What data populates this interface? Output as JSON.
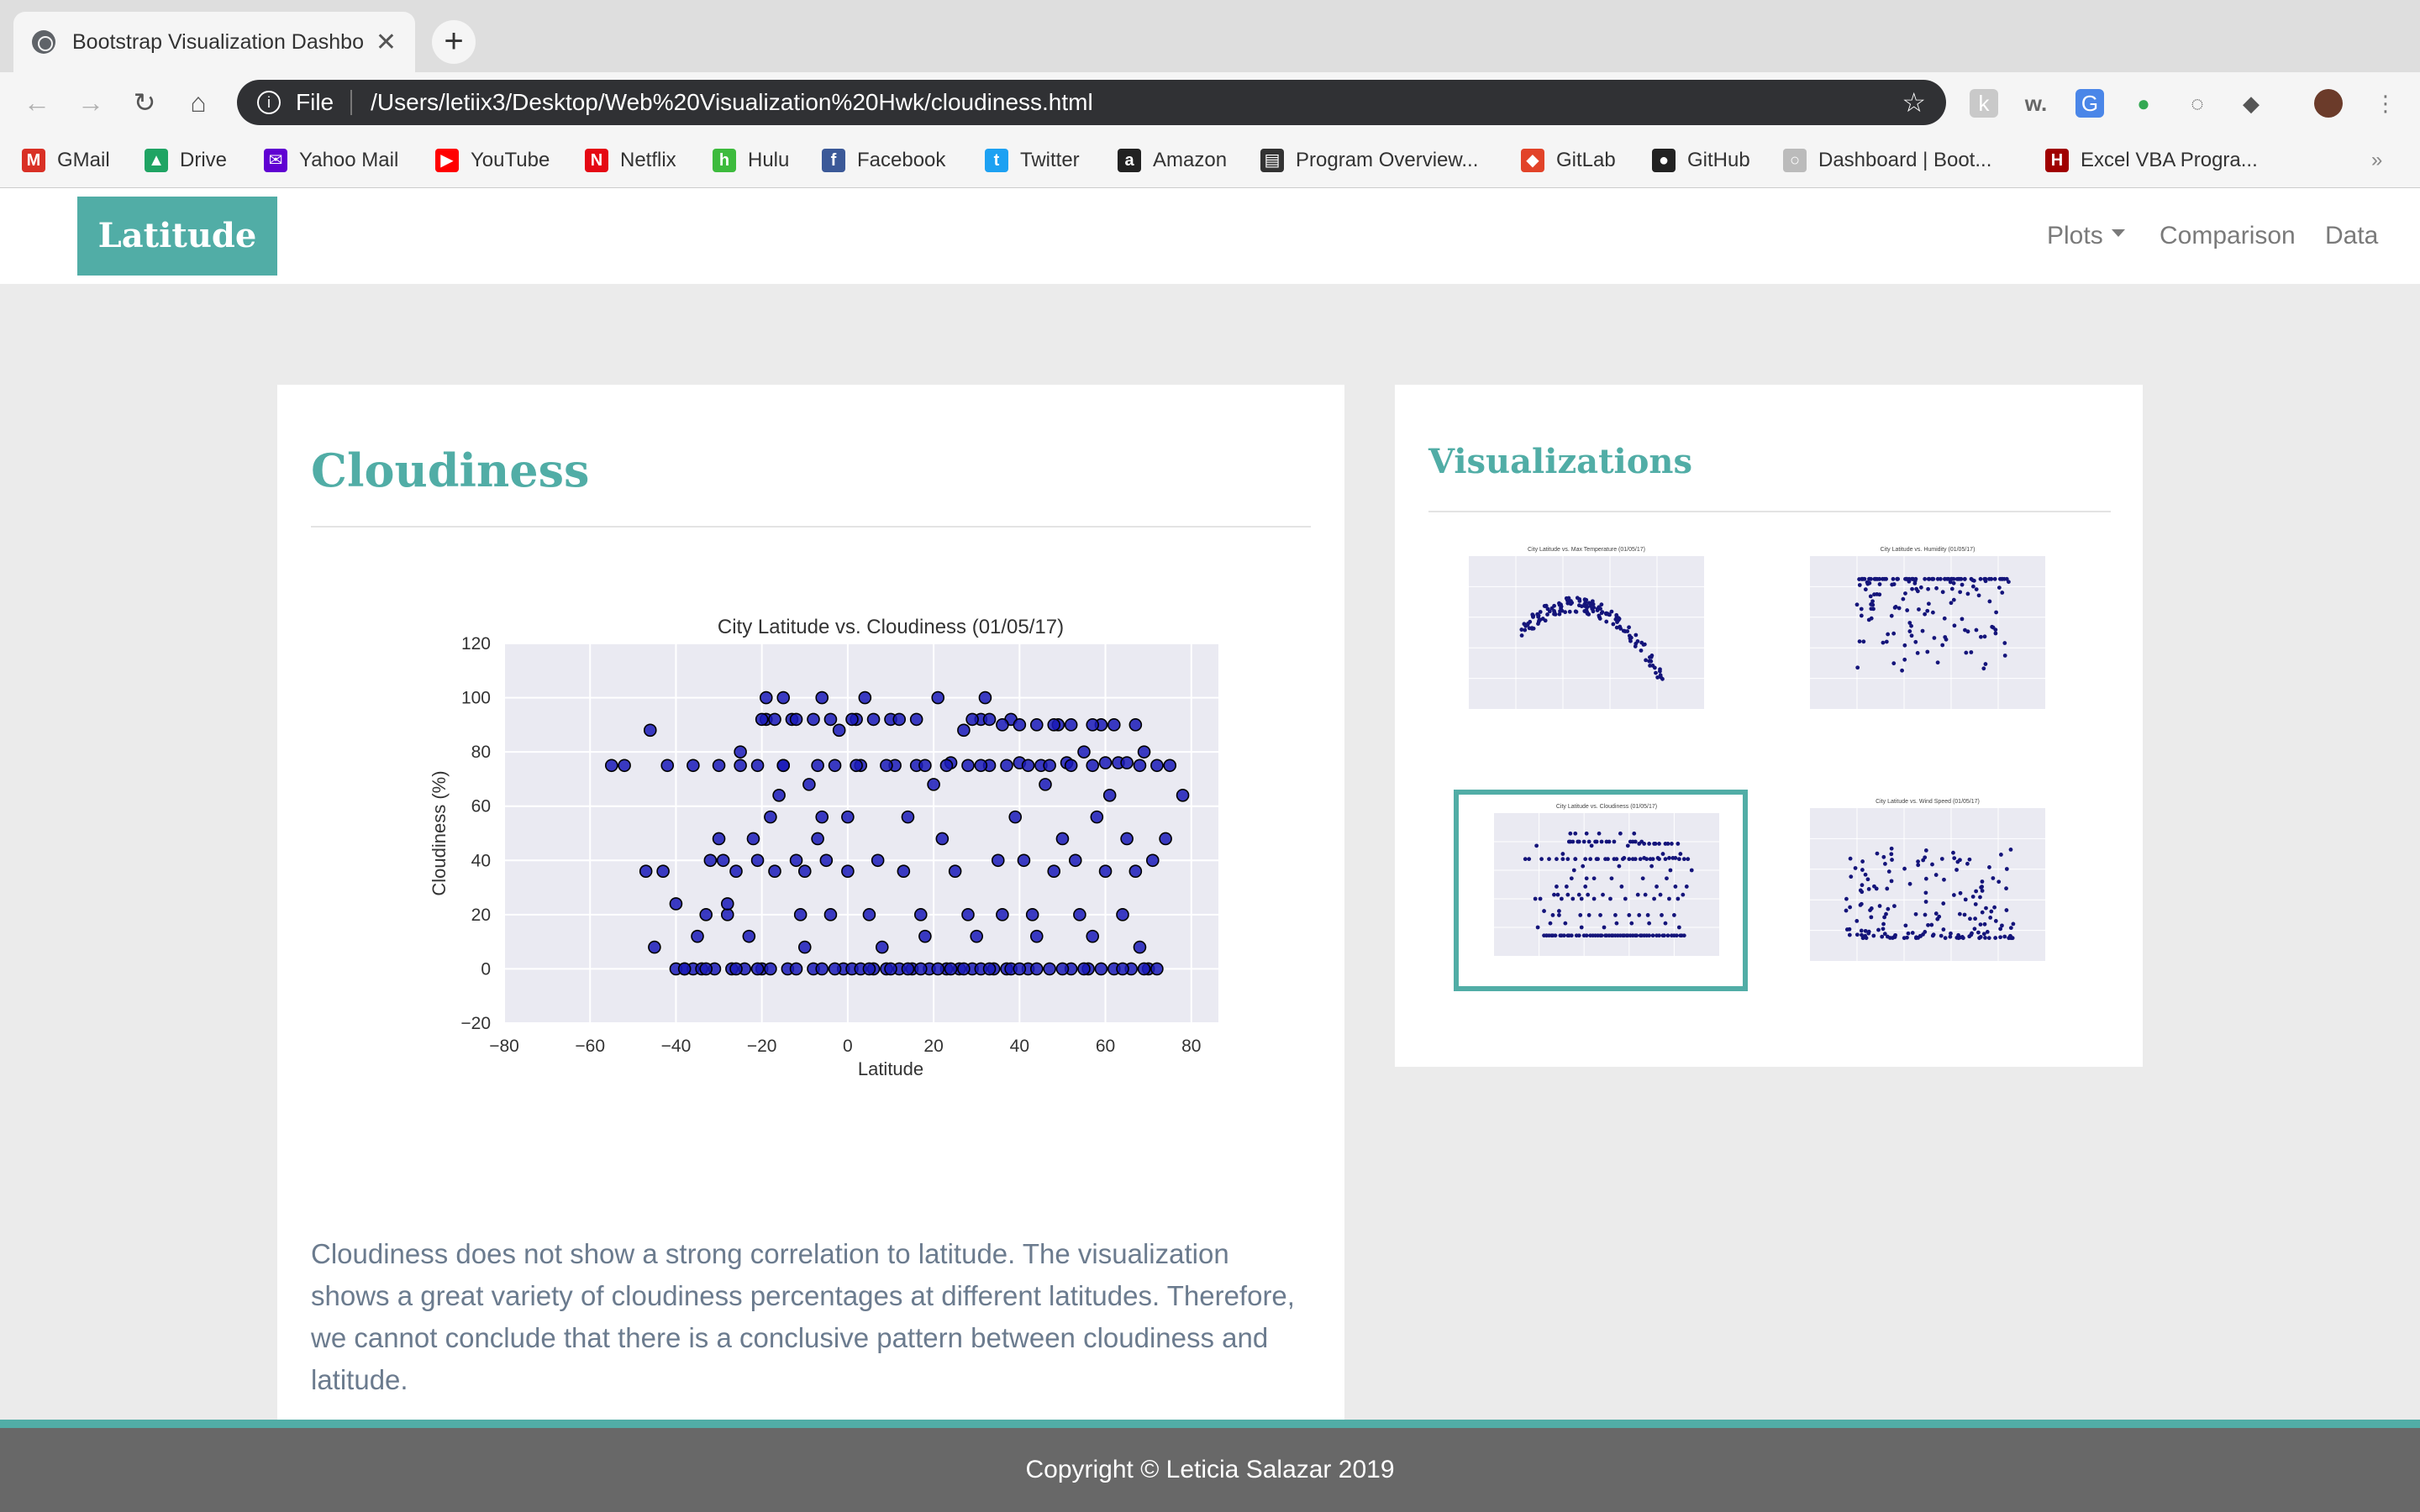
{
  "browser": {
    "tab_title": "Bootstrap Visualization Dashbo",
    "new_tab": "+",
    "close": "✕",
    "scheme": "File",
    "url": "/Users/letiix3/Desktop/Web%20Visualization%20Hwk/cloudiness.html",
    "more_bookmarks": "»",
    "bookmarks": [
      {
        "label": "GMail",
        "icon": "gmail-icon",
        "color": "#d93025",
        "glyph": "M"
      },
      {
        "label": "Drive",
        "icon": "drive-icon",
        "color": "#1fa463",
        "glyph": "▲"
      },
      {
        "label": "Yahoo Mail",
        "icon": "yahoo-mail-icon",
        "color": "#6001d2",
        "glyph": "✉"
      },
      {
        "label": "YouTube",
        "icon": "youtube-icon",
        "color": "#ff0000",
        "glyph": "▶"
      },
      {
        "label": "Netflix",
        "icon": "netflix-icon",
        "color": "#e50914",
        "glyph": "N"
      },
      {
        "label": "Hulu",
        "icon": "hulu-icon",
        "color": "#3dbb3d",
        "glyph": "h"
      },
      {
        "label": "Facebook",
        "icon": "facebook-icon",
        "color": "#3b5998",
        "glyph": "f"
      },
      {
        "label": "Twitter",
        "icon": "twitter-icon",
        "color": "#1da1f2",
        "glyph": "t"
      },
      {
        "label": "Amazon",
        "icon": "amazon-icon",
        "color": "#222222",
        "glyph": "a"
      },
      {
        "label": "Program Overview...",
        "icon": "book-icon",
        "color": "#333333",
        "glyph": "▤"
      },
      {
        "label": "GitLab",
        "icon": "gitlab-icon",
        "color": "#e24329",
        "glyph": "◆"
      },
      {
        "label": "GitHub",
        "icon": "github-icon",
        "color": "#222222",
        "glyph": "●"
      },
      {
        "label": "Dashboard | Boot...",
        "icon": "globe-icon",
        "color": "#bbbbbb",
        "glyph": "○"
      },
      {
        "label": "Excel VBA Progra...",
        "icon": "hl-icon",
        "color": "#a00000",
        "glyph": "H"
      }
    ]
  },
  "nav": {
    "brand": "Latitude",
    "links": [
      "Plots",
      "Comparison",
      "Data"
    ]
  },
  "main": {
    "title": "Cloudiness",
    "description": "Cloudiness does not show a strong correlation to latitude. The visualization shows a great variety of cloudiness percentages at different latitudes. Therefore, we cannot conclude that there is a conclusive pattern between cloudiness and latitude."
  },
  "side": {
    "title": "Visualizations",
    "thumbnails": [
      {
        "title": "City Latitude vs. Max Temperature (01/05/17)"
      },
      {
        "title": "City Latitude vs. Humidity (01/05/17)"
      },
      {
        "title": "City Latitude vs. Cloudiness (01/05/17)"
      },
      {
        "title": "City Latitude vs. Wind Speed (01/05/17)"
      }
    ]
  },
  "footer": {
    "text": "Copyright © Leticia Salazar 2019"
  },
  "colors": {
    "accent": "#51ada6",
    "point": "#1a1ab8",
    "plot_bg": "#eaeaf2"
  },
  "chart_data": {
    "type": "scatter",
    "title": "City Latitude vs. Cloudiness (01/05/17)",
    "xlabel": "Latitude",
    "ylabel": "Cloudiness (%)",
    "xlim": [
      -80,
      100
    ],
    "ylim": [
      -20,
      120
    ],
    "xticks": [
      -80,
      -60,
      -40,
      -20,
      0,
      20,
      40,
      60,
      80,
      100
    ],
    "yticks": [
      -20,
      0,
      20,
      40,
      60,
      80,
      100,
      120
    ],
    "grid": true,
    "points": [
      [
        -55,
        75
      ],
      [
        -52,
        75
      ],
      [
        -46,
        88
      ],
      [
        -45,
        8
      ],
      [
        -47,
        36
      ],
      [
        -43,
        36
      ],
      [
        -42,
        75
      ],
      [
        -40,
        24
      ],
      [
        -38,
        0
      ],
      [
        -36,
        0
      ],
      [
        -35,
        12
      ],
      [
        -34,
        0
      ],
      [
        -33,
        20
      ],
      [
        -32,
        40
      ],
      [
        -31,
        0
      ],
      [
        -30,
        48
      ],
      [
        -29,
        40
      ],
      [
        -28,
        20
      ],
      [
        -28,
        24
      ],
      [
        -27,
        0
      ],
      [
        -26,
        36
      ],
      [
        -25,
        75
      ],
      [
        -25,
        80
      ],
      [
        -24,
        0
      ],
      [
        -23,
        12
      ],
      [
        -22,
        48
      ],
      [
        -21,
        40
      ],
      [
        -20,
        0
      ],
      [
        -19,
        92
      ],
      [
        -19,
        100
      ],
      [
        -18,
        56
      ],
      [
        -17,
        36
      ],
      [
        -16,
        64
      ],
      [
        -15,
        100
      ],
      [
        -15,
        75
      ],
      [
        -14,
        0
      ],
      [
        -13,
        92
      ],
      [
        -12,
        40
      ],
      [
        -11,
        20
      ],
      [
        -10,
        36
      ],
      [
        -10,
        8
      ],
      [
        -9,
        68
      ],
      [
        -8,
        0
      ],
      [
        -7,
        48
      ],
      [
        -6,
        56
      ],
      [
        -6,
        100
      ],
      [
        -5,
        40
      ],
      [
        -4,
        20
      ],
      [
        -3,
        75
      ],
      [
        -2,
        88
      ],
      [
        -1,
        0
      ],
      [
        0,
        36
      ],
      [
        0,
        56
      ],
      [
        1,
        0
      ],
      [
        2,
        92
      ],
      [
        3,
        75
      ],
      [
        4,
        100
      ],
      [
        5,
        20
      ],
      [
        6,
        0
      ],
      [
        7,
        40
      ],
      [
        8,
        8
      ],
      [
        9,
        0
      ],
      [
        10,
        92
      ],
      [
        11,
        75
      ],
      [
        12,
        0
      ],
      [
        13,
        36
      ],
      [
        14,
        56
      ],
      [
        15,
        0
      ],
      [
        16,
        75
      ],
      [
        17,
        20
      ],
      [
        18,
        12
      ],
      [
        19,
        0
      ],
      [
        20,
        68
      ],
      [
        21,
        100
      ],
      [
        22,
        48
      ],
      [
        23,
        0
      ],
      [
        24,
        76
      ],
      [
        25,
        36
      ],
      [
        26,
        0
      ],
      [
        27,
        88
      ],
      [
        28,
        20
      ],
      [
        29,
        0
      ],
      [
        30,
        12
      ],
      [
        31,
        92
      ],
      [
        32,
        100
      ],
      [
        33,
        75
      ],
      [
        34,
        0
      ],
      [
        35,
        40
      ],
      [
        36,
        20
      ],
      [
        37,
        0
      ],
      [
        38,
        92
      ],
      [
        39,
        56
      ],
      [
        40,
        76
      ],
      [
        41,
        40
      ],
      [
        42,
        0
      ],
      [
        43,
        20
      ],
      [
        44,
        12
      ],
      [
        45,
        75
      ],
      [
        46,
        68
      ],
      [
        47,
        0
      ],
      [
        48,
        36
      ],
      [
        49,
        90
      ],
      [
        50,
        48
      ],
      [
        51,
        76
      ],
      [
        52,
        0
      ],
      [
        53,
        40
      ],
      [
        54,
        20
      ],
      [
        55,
        80
      ],
      [
        56,
        0
      ],
      [
        57,
        12
      ],
      [
        58,
        56
      ],
      [
        59,
        90
      ],
      [
        60,
        36
      ],
      [
        61,
        64
      ],
      [
        62,
        0
      ],
      [
        63,
        76
      ],
      [
        64,
        20
      ],
      [
        65,
        48
      ],
      [
        66,
        0
      ],
      [
        67,
        36
      ],
      [
        68,
        8
      ],
      [
        69,
        80
      ],
      [
        70,
        0
      ],
      [
        71,
        40
      ],
      [
        72,
        0
      ],
      [
        74,
        48
      ],
      [
        75,
        75
      ],
      [
        78,
        64
      ],
      [
        -40,
        0
      ],
      [
        -38,
        0
      ],
      [
        -33,
        0
      ],
      [
        -26,
        0
      ],
      [
        -21,
        0
      ],
      [
        -18,
        0
      ],
      [
        -12,
        0
      ],
      [
        -6,
        0
      ],
      [
        -3,
        0
      ],
      [
        3,
        0
      ],
      [
        5,
        0
      ],
      [
        10,
        0
      ],
      [
        14,
        0
      ],
      [
        17,
        0
      ],
      [
        21,
        0
      ],
      [
        24,
        0
      ],
      [
        27,
        0
      ],
      [
        31,
        0
      ],
      [
        33,
        0
      ],
      [
        38,
        0
      ],
      [
        40,
        0
      ],
      [
        44,
        0
      ],
      [
        50,
        0
      ],
      [
        55,
        0
      ],
      [
        59,
        0
      ],
      [
        64,
        0
      ],
      [
        69,
        0
      ],
      [
        -20,
        92
      ],
      [
        -17,
        92
      ],
      [
        -12,
        92
      ],
      [
        -8,
        92
      ],
      [
        -4,
        92
      ],
      [
        1,
        92
      ],
      [
        6,
        92
      ],
      [
        12,
        92
      ],
      [
        16,
        92
      ],
      [
        29,
        92
      ],
      [
        33,
        92
      ],
      [
        36,
        90
      ],
      [
        40,
        90
      ],
      [
        44,
        90
      ],
      [
        48,
        90
      ],
      [
        52,
        90
      ],
      [
        57,
        90
      ],
      [
        62,
        90
      ],
      [
        67,
        90
      ],
      [
        -36,
        75
      ],
      [
        -30,
        75
      ],
      [
        -21,
        75
      ],
      [
        -15,
        75
      ],
      [
        -7,
        75
      ],
      [
        2,
        75
      ],
      [
        9,
        75
      ],
      [
        18,
        75
      ],
      [
        23,
        75
      ],
      [
        28,
        75
      ],
      [
        31,
        75
      ],
      [
        37,
        75
      ],
      [
        42,
        75
      ],
      [
        47,
        75
      ],
      [
        52,
        75
      ],
      [
        57,
        75
      ],
      [
        60,
        76
      ],
      [
        65,
        76
      ],
      [
        68,
        75
      ],
      [
        72,
        75
      ]
    ]
  }
}
